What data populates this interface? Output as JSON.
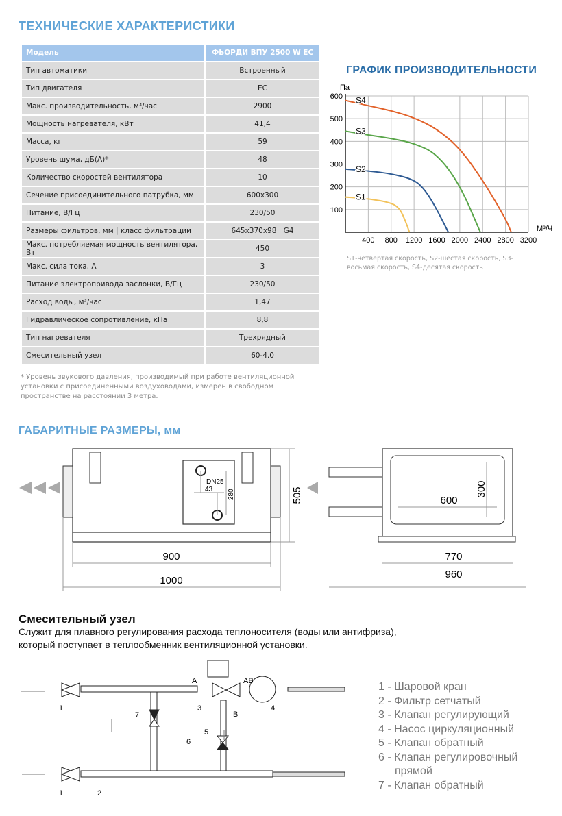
{
  "specs": {
    "title": "ТЕХНИЧЕСКИЕ ХАРАКТЕРИСТИКИ",
    "header": {
      "label": "Модель",
      "value": "ФЬОРДИ ВПУ 2500 W EC"
    },
    "rows": [
      {
        "label": "Тип автоматики",
        "value": "Встроенный"
      },
      {
        "label": "Тип двигателя",
        "value": "EC"
      },
      {
        "label": "Макс. производительность, м³/час",
        "value": "2900"
      },
      {
        "label": "Мощность нагревателя, кВт",
        "value": "41,4"
      },
      {
        "label": "Масса, кг",
        "value": "59"
      },
      {
        "label": "Уровень шума, дБ(А)*",
        "value": "48"
      },
      {
        "label": "Количество скоростей вентилятора",
        "value": "10"
      },
      {
        "label": "Сечение присоединительного патрубка, мм",
        "value": "600x300"
      },
      {
        "label": "Питание, В/Гц",
        "value": "230/50"
      },
      {
        "label": "Размеры фильтров, мм  |  класс фильтрации",
        "value": "645x370x98  |  G4"
      },
      {
        "label": "Макс. потребляемая мощность вентилятора, Вт",
        "value": "450"
      },
      {
        "label": "Макс. сила тока, А",
        "value": "3"
      },
      {
        "label": "Питание электропривода заслонки, В/Гц",
        "value": "230/50"
      },
      {
        "label": "Расход воды, м³/час",
        "value": "1,47"
      },
      {
        "label": "Гидравлическое сопротивление, кПа",
        "value": "8,8"
      },
      {
        "label": "Тип нагревателя",
        "value": "Трехрядный"
      },
      {
        "label": "Смесительный узел",
        "value": "60-4.0"
      }
    ],
    "footnote": "* Уровень звукового давления, производимый при работе вентиляционной установки с присоединенными воздуховодами, измерен в свободном пространстве на расстоянии 3 метра."
  },
  "chart_data": {
    "type": "line",
    "title": "ГРАФИК ПРОИЗВОДИТЕЛЬНОСТИ",
    "xlabel": "М³/Ч",
    "ylabel": "Па",
    "xlim": [
      0,
      3200
    ],
    "ylim": [
      0,
      600
    ],
    "x_ticks": [
      "400",
      "800",
      "1200",
      "1600",
      "2000",
      "2400",
      "2800",
      "3200"
    ],
    "y_ticks": [
      "100",
      "200",
      "300",
      "400",
      "500",
      "600"
    ],
    "grid": true,
    "series": [
      {
        "name": "S1",
        "color": "#f2c25a",
        "points": [
          [
            0,
            155
          ],
          [
            400,
            148
          ],
          [
            800,
            130
          ],
          [
            950,
            105
          ],
          [
            1050,
            50
          ],
          [
            1120,
            0
          ]
        ]
      },
      {
        "name": "S2",
        "color": "#2f5b93",
        "points": [
          [
            0,
            278
          ],
          [
            400,
            270
          ],
          [
            800,
            258
          ],
          [
            1200,
            232
          ],
          [
            1400,
            185
          ],
          [
            1600,
            100
          ],
          [
            1800,
            0
          ]
        ]
      },
      {
        "name": "S3",
        "color": "#5aa64a",
        "points": [
          [
            0,
            445
          ],
          [
            400,
            428
          ],
          [
            800,
            413
          ],
          [
            1200,
            392
          ],
          [
            1600,
            345
          ],
          [
            2000,
            210
          ],
          [
            2360,
            0
          ]
        ]
      },
      {
        "name": "S4",
        "color": "#e2622a",
        "points": [
          [
            0,
            580
          ],
          [
            400,
            557
          ],
          [
            800,
            535
          ],
          [
            1200,
            505
          ],
          [
            1600,
            455
          ],
          [
            2000,
            370
          ],
          [
            2400,
            230
          ],
          [
            2800,
            60
          ],
          [
            2900,
            0
          ]
        ]
      }
    ],
    "note": "S1-четвертая скорость, S2-шестая скорость, S3-восьмая скорость, S4-десятая скорость"
  },
  "dimensions": {
    "title": "ГАБАРИТНЫЕ РАЗМЕРЫ, мм",
    "front": {
      "width_inner": "900",
      "width_total": "1000",
      "height": "505",
      "pipe": "DN25",
      "pipe_offset": "43",
      "pipe_spacing": "280"
    },
    "side": {
      "duct_width": "600",
      "duct_height": "300",
      "width_inner": "770",
      "width_total": "960"
    }
  },
  "mixing": {
    "title": "Смесительный узел",
    "description": "Служит для плавного регулирования расхода теплоносителя (воды или антифриза), который поступает в теплообменник вентиляционной установки.",
    "port_labels": {
      "a": "A",
      "ab": "AB",
      "b": "B"
    },
    "callouts": [
      "1",
      "2",
      "3",
      "4",
      "5",
      "6",
      "7"
    ],
    "legend": [
      "1 - Шаровой кран",
      "2 - Фильтр сетчатый",
      "3 - Клапан регулирующий",
      "4 - Насос циркуляционный",
      "5 - Клапан обратный",
      "6 - Клапан регулировочный",
      "прямой",
      "7 - Клапан обратный"
    ]
  }
}
